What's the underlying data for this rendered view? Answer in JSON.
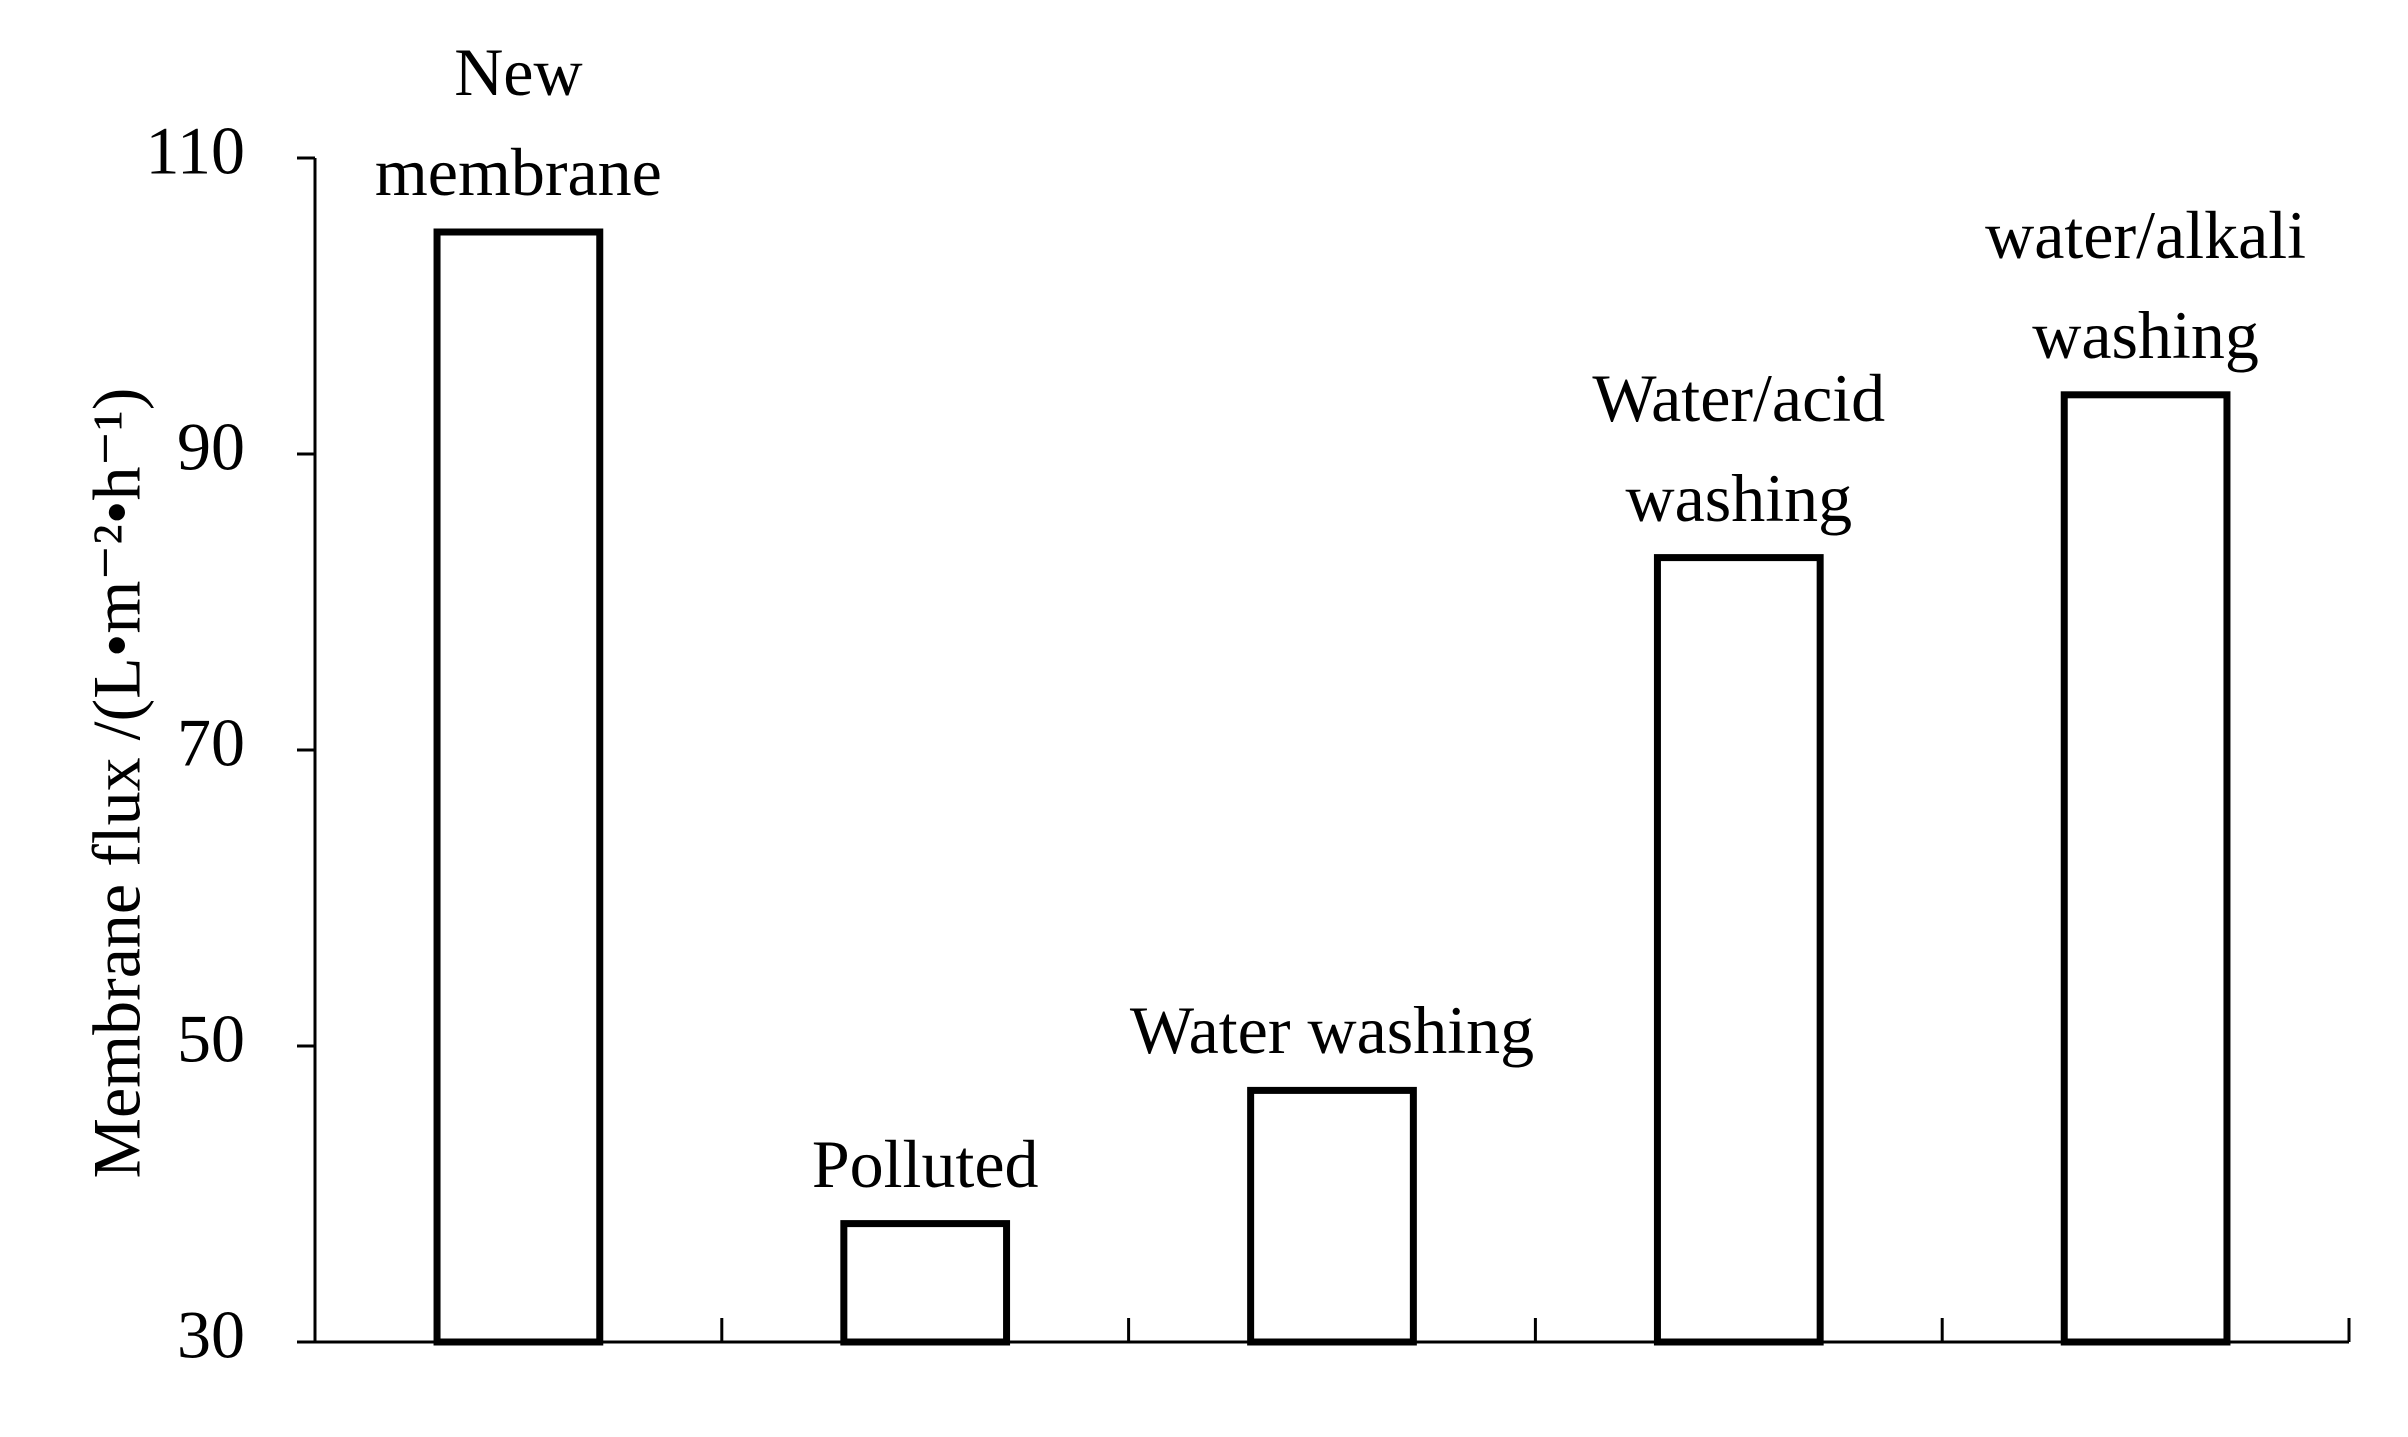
{
  "chart_data": {
    "type": "bar",
    "y_label": "Membrane flux /(L•m⁻²•h⁻¹)",
    "categories": [
      "New membrane",
      "Polluted",
      "Water washing",
      "Water/acid washing",
      "water/alkali washing"
    ],
    "values": [
      105,
      38,
      47,
      83,
      94
    ],
    "color": "#000000",
    "ylim": [
      30,
      110
    ],
    "yticks": [
      30,
      50,
      70,
      90,
      110
    ],
    "grid": false
  }
}
